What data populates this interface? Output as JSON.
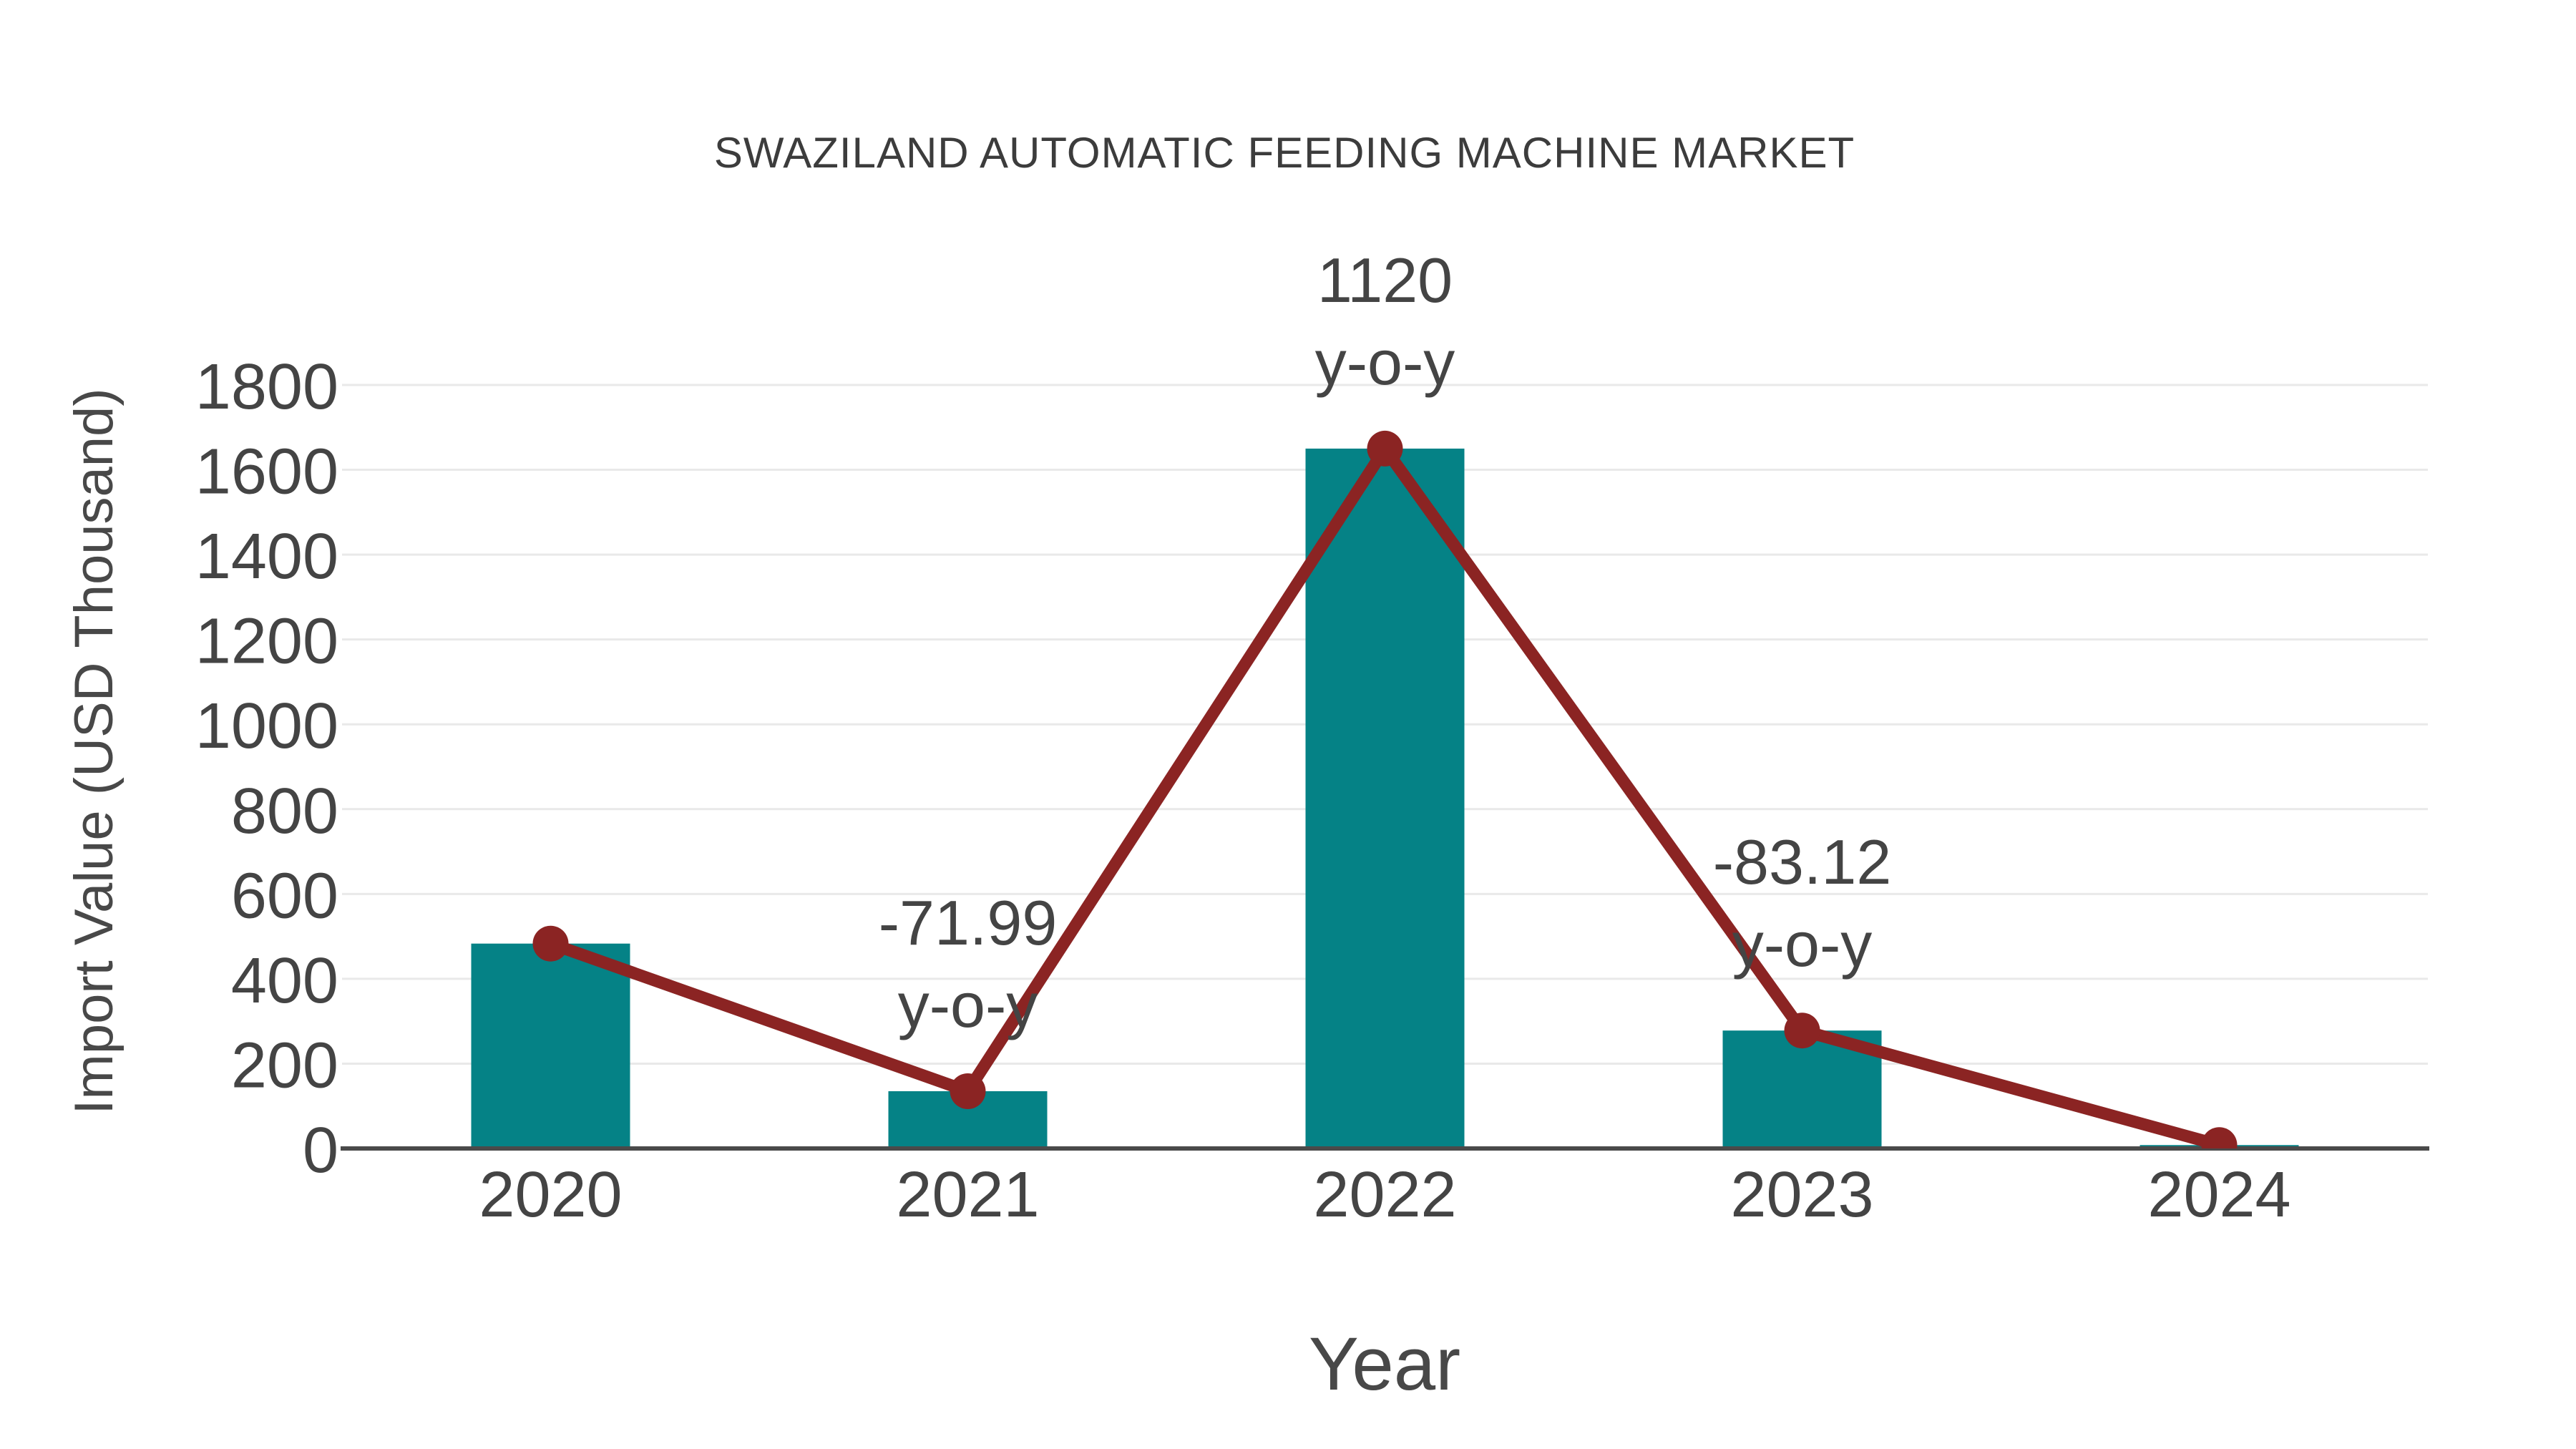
{
  "chart_data": {
    "type": "bar",
    "subtype": "bar-with-line-overlay",
    "title": "SWAZILAND AUTOMATIC FEEDING MACHINE MARKET",
    "xlabel": "Year",
    "ylabel": "Import Value (USD Thousand)",
    "categories": [
      "2020",
      "2021",
      "2022",
      "2023",
      "2024"
    ],
    "values": [
      483,
      135,
      1650,
      278,
      8
    ],
    "line_values": [
      483,
      135,
      1650,
      278,
      8
    ],
    "annotations": [
      {
        "category": "2021",
        "value_label": "-71.99",
        "unit_label": "y-o-y"
      },
      {
        "category": "2022",
        "value_label": "1120",
        "unit_label": "y-o-y"
      },
      {
        "category": "2023",
        "value_label": "-83.12",
        "unit_label": "y-o-y"
      }
    ],
    "yticks": [
      0,
      200,
      400,
      600,
      800,
      1000,
      1200,
      1400,
      1600,
      1800
    ],
    "ylim": [
      0,
      1900
    ],
    "grid": true,
    "legend": false,
    "colors": {
      "bar": "#058286",
      "line": "#8b2423",
      "marker": "#8b2423",
      "grid": "#e9e9e9",
      "axis": "#4a4a4a",
      "text": "#444444",
      "title": "#3c3c3c",
      "background": "#ffffff"
    }
  }
}
